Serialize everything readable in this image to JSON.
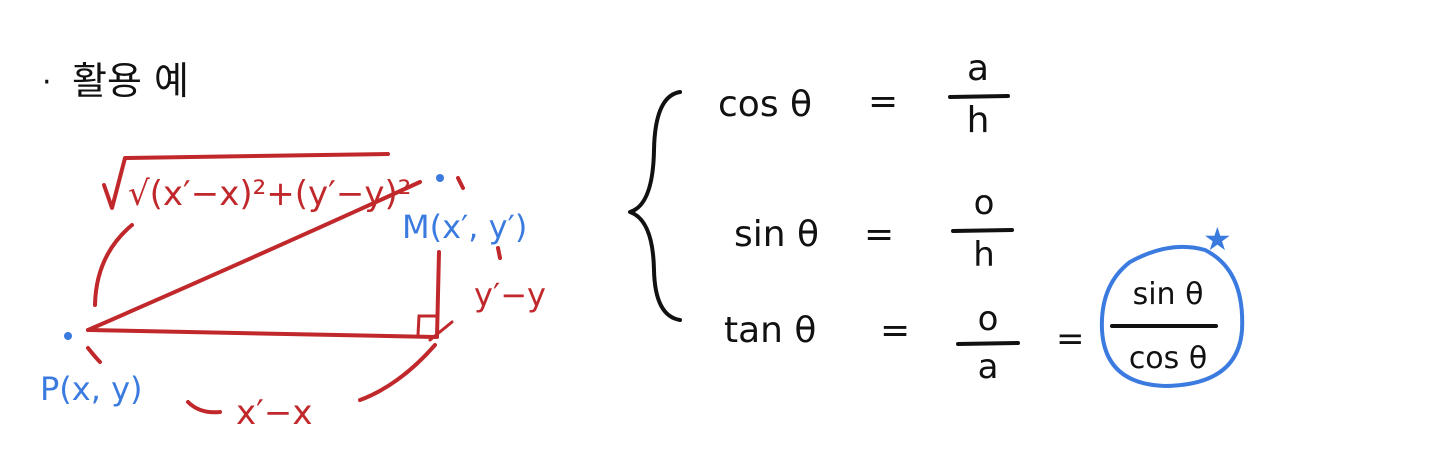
{
  "heading": {
    "bullet": "·",
    "text": "활용 예"
  },
  "triangle": {
    "hypotenuse_label": "√(x′−x)²+(y′−y)²",
    "point_p_label": "P(x, y)",
    "point_m_label": "M(x′, y′)",
    "base_label": "x′−x",
    "height_label": "y′−y"
  },
  "formulas": {
    "cos": {
      "lhs": "cos θ",
      "eq": "=",
      "num": "a",
      "den": "h"
    },
    "sin": {
      "lhs": "sin θ",
      "eq": "=",
      "num": "o",
      "den": "h"
    },
    "tan": {
      "lhs": "tan θ",
      "eq": "=",
      "num": "o",
      "den": "a",
      "eq2": "=",
      "num2": "sin θ",
      "den2": "cos θ"
    },
    "highlight_mark": "★"
  },
  "colors": {
    "ink": "#111111",
    "red": "#c0282b",
    "blue": "#3b7be0"
  }
}
